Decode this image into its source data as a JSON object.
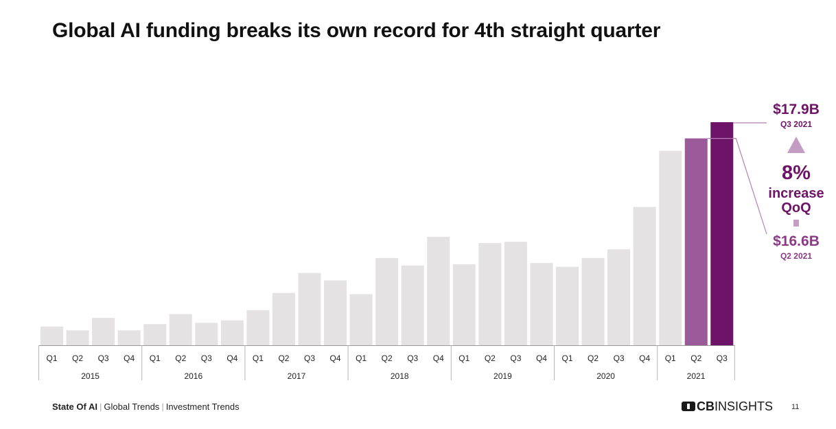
{
  "title": "Global AI funding breaks its own record for 4th straight quarter",
  "chart_data": {
    "type": "bar",
    "categories": [
      "Q1 2015",
      "Q2 2015",
      "Q3 2015",
      "Q4 2015",
      "Q1 2016",
      "Q2 2016",
      "Q3 2016",
      "Q4 2016",
      "Q1 2017",
      "Q2 2017",
      "Q3 2017",
      "Q4 2017",
      "Q1 2018",
      "Q2 2018",
      "Q3 2018",
      "Q4 2018",
      "Q1 2019",
      "Q2 2019",
      "Q3 2019",
      "Q4 2019",
      "Q1 2020",
      "Q2 2020",
      "Q3 2020",
      "Q4 2020",
      "Q1 2021",
      "Q2 2021",
      "Q3 2021"
    ],
    "quarter_labels": [
      "Q1",
      "Q2",
      "Q3",
      "Q4",
      "Q1",
      "Q2",
      "Q3",
      "Q4",
      "Q1",
      "Q2",
      "Q3",
      "Q4",
      "Q1",
      "Q2",
      "Q3",
      "Q4",
      "Q1",
      "Q2",
      "Q3",
      "Q4",
      "Q1",
      "Q2",
      "Q3",
      "Q4",
      "Q1",
      "Q2",
      "Q3"
    ],
    "years": [
      "2015",
      "2016",
      "2017",
      "2018",
      "2019",
      "2020",
      "2021"
    ],
    "values": [
      1.5,
      1.2,
      2.2,
      1.2,
      1.7,
      2.5,
      1.8,
      2.0,
      2.8,
      4.2,
      5.8,
      5.2,
      4.1,
      7.0,
      6.4,
      8.7,
      6.5,
      8.2,
      8.3,
      6.6,
      6.3,
      7.0,
      7.7,
      11.1,
      15.6,
      16.6,
      17.9
    ],
    "colors": {
      "base": "#e4e2e3",
      "highlight_prev": "#9b5a9a",
      "highlight_last": "#6d1468",
      "year_divider": "#b5b5b5"
    },
    "ylim": [
      0,
      18
    ]
  },
  "callout": {
    "latest_value": "$17.9B",
    "latest_period": "Q3 2021",
    "change_pct": "8%",
    "change_text_1": "increase",
    "change_text_2": "QoQ",
    "prev_value": "$16.6B",
    "prev_period": "Q2 2021"
  },
  "footer": {
    "section": "State Of AI",
    "crumb1": "Global Trends",
    "crumb2": "Investment Trends",
    "brand_bold": "CB",
    "brand_rest": "INSIGHTS",
    "page": "11"
  }
}
